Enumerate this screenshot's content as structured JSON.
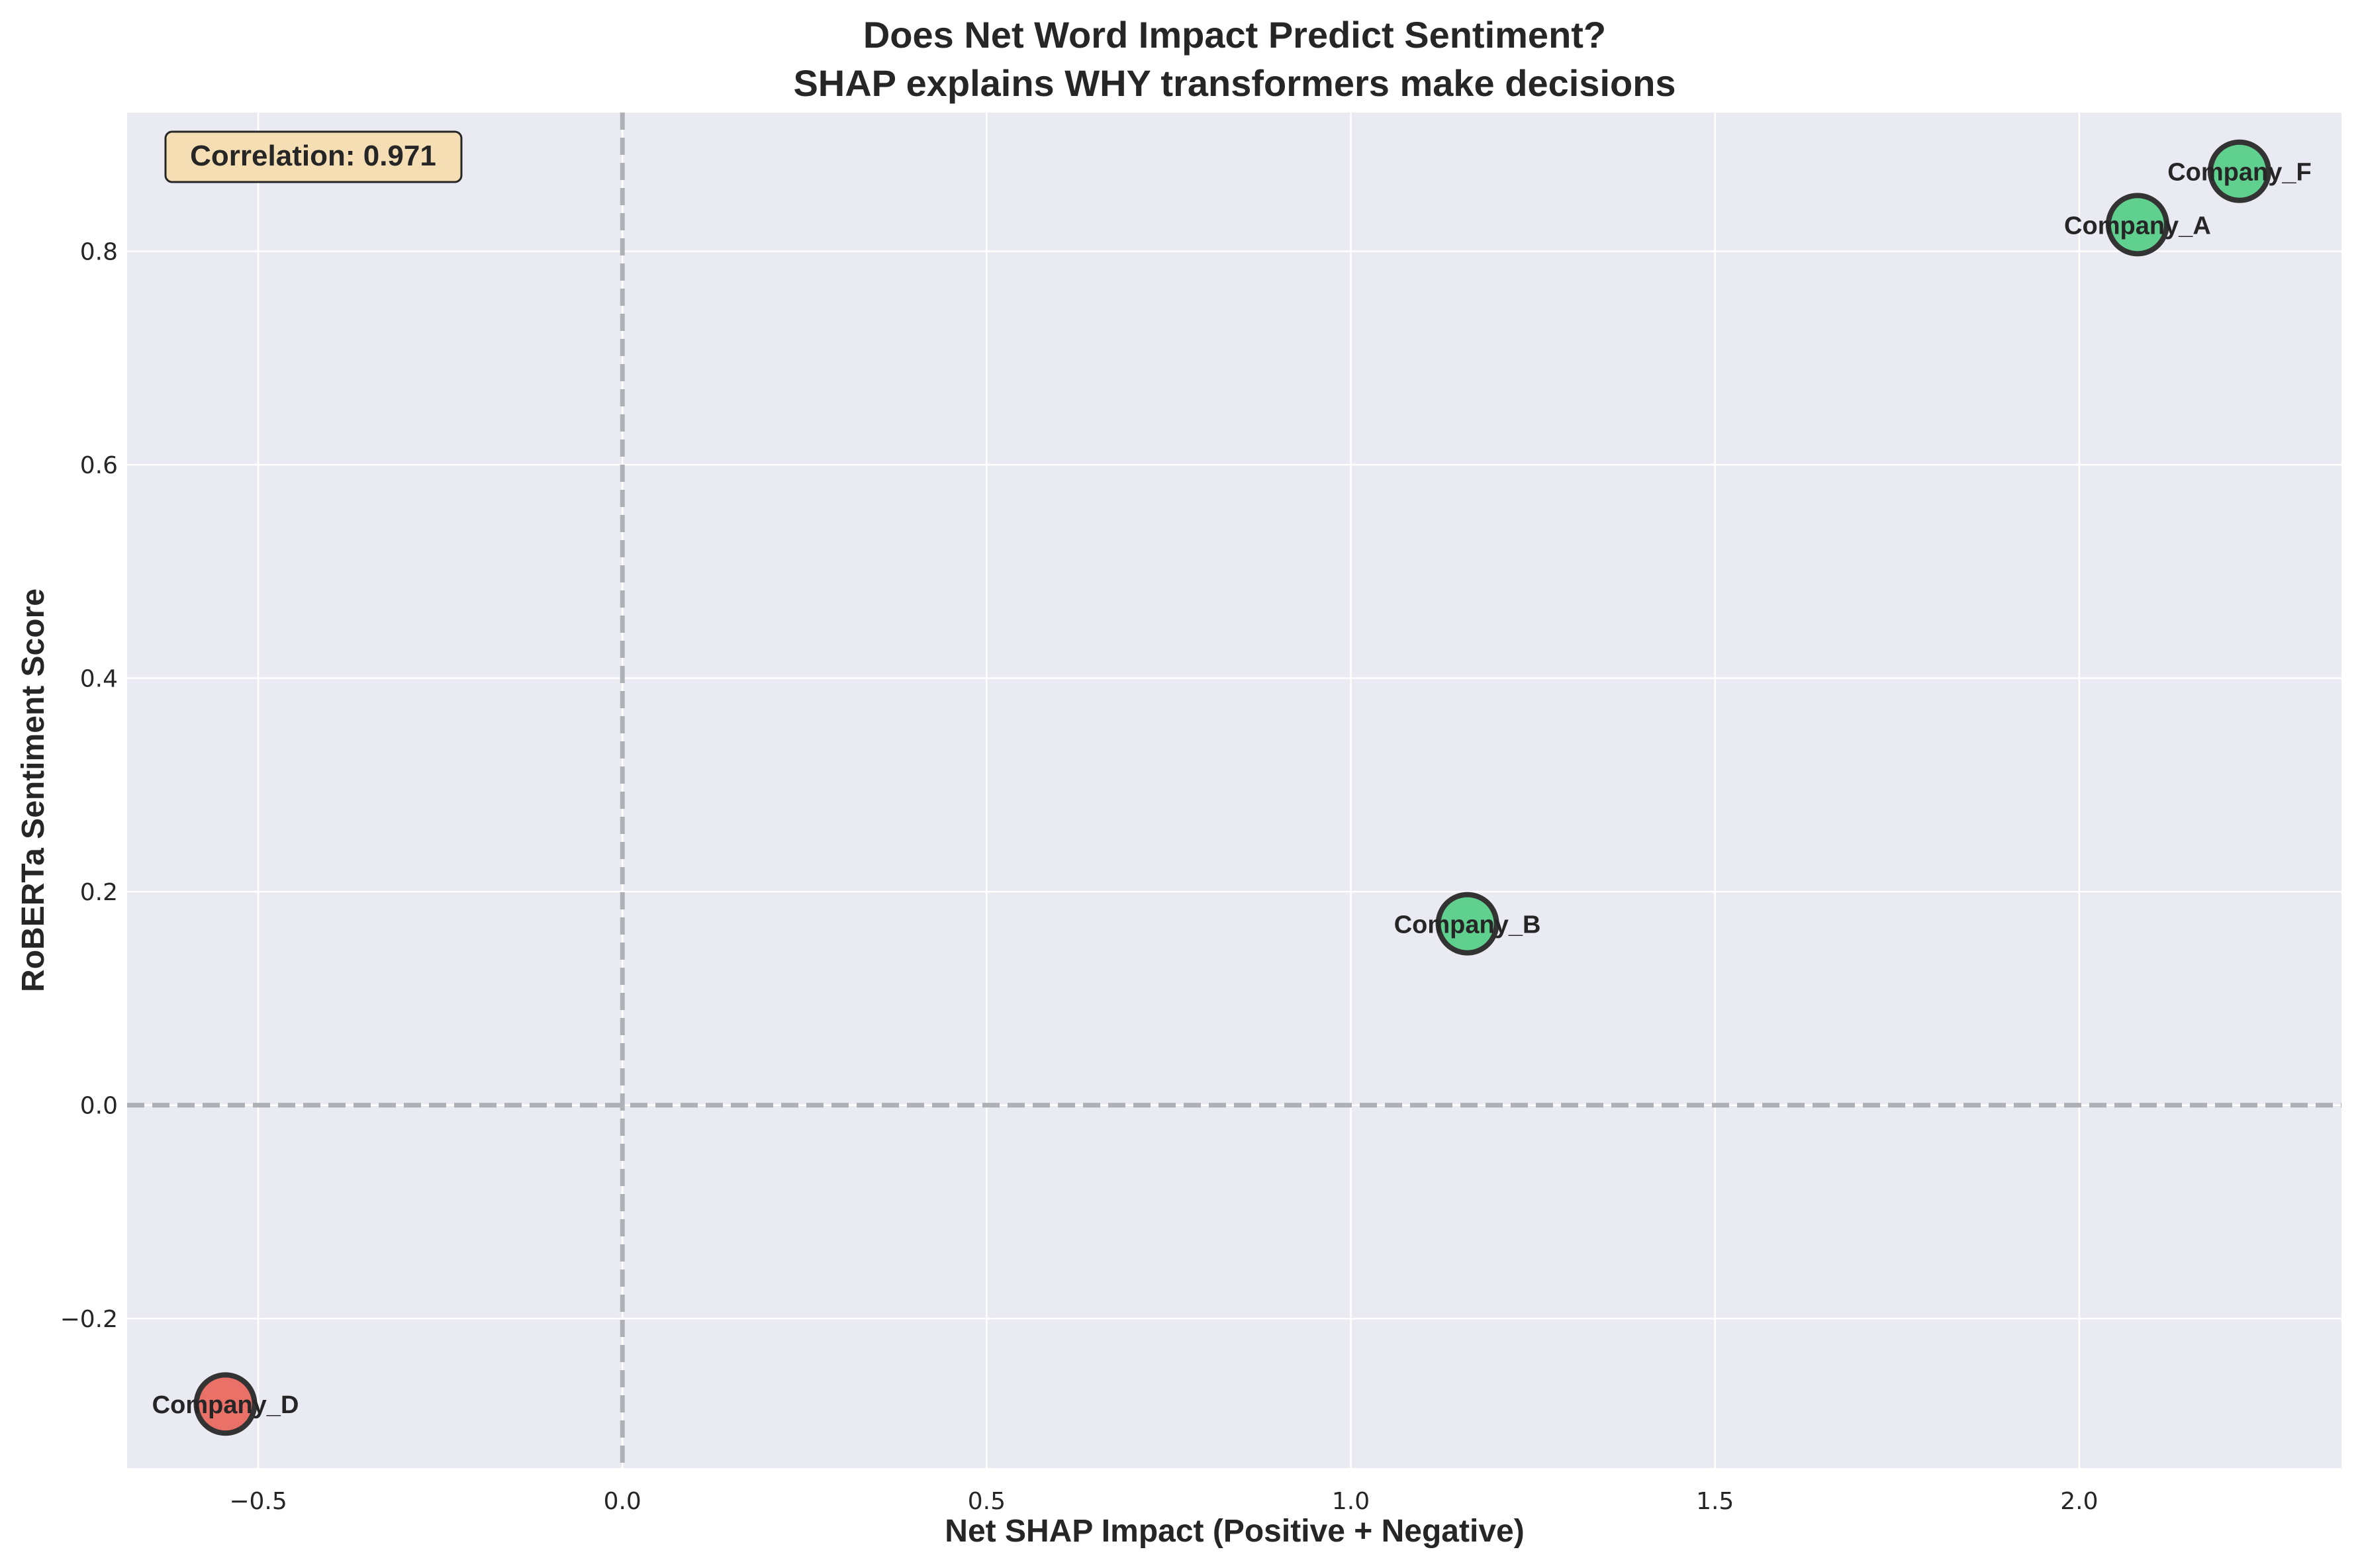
{
  "chart_data": {
    "type": "scatter",
    "title_lines": [
      "Does Net Word Impact Predict Sentiment?",
      "SHAP explains WHY transformers make decisions"
    ],
    "xlabel": "Net SHAP Impact (Positive + Negative)",
    "ylabel": "RoBERTa Sentiment Score",
    "xlim": [
      -0.68,
      2.36
    ],
    "ylim": [
      -0.34,
      0.93
    ],
    "xticks": [
      -0.5,
      0.0,
      0.5,
      1.0,
      1.5,
      2.0
    ],
    "xtick_labels": [
      "−0.5",
      "0.0",
      "0.5",
      "1.0",
      "1.5",
      "2.0"
    ],
    "yticks": [
      -0.2,
      0.0,
      0.2,
      0.4,
      0.6,
      0.8
    ],
    "ytick_labels": [
      "−0.2",
      "0.0",
      "0.2",
      "0.4",
      "0.6",
      "0.8"
    ],
    "grid": true,
    "reference_lines": {
      "x": 0.0,
      "y": 0.0
    },
    "annotation": "Correlation: 0.971",
    "points": [
      {
        "label": "Company_F",
        "x": 2.22,
        "y": 0.875,
        "color": "#5fd08e"
      },
      {
        "label": "Company_A",
        "x": 2.08,
        "y": 0.825,
        "color": "#5fd08e"
      },
      {
        "label": "Company_B",
        "x": 1.16,
        "y": 0.17,
        "color": "#5fd08e"
      },
      {
        "label": "Company_D",
        "x": -0.545,
        "y": -0.28,
        "color": "#ea7168"
      }
    ]
  },
  "colors": {
    "plot_background": "#eaeaf2",
    "grid": "#ffffff",
    "reference_line": "#aeb0b5",
    "marker_edge": "#333333",
    "annotation_fill": "#f5deb3",
    "annotation_edge": "#262626"
  }
}
